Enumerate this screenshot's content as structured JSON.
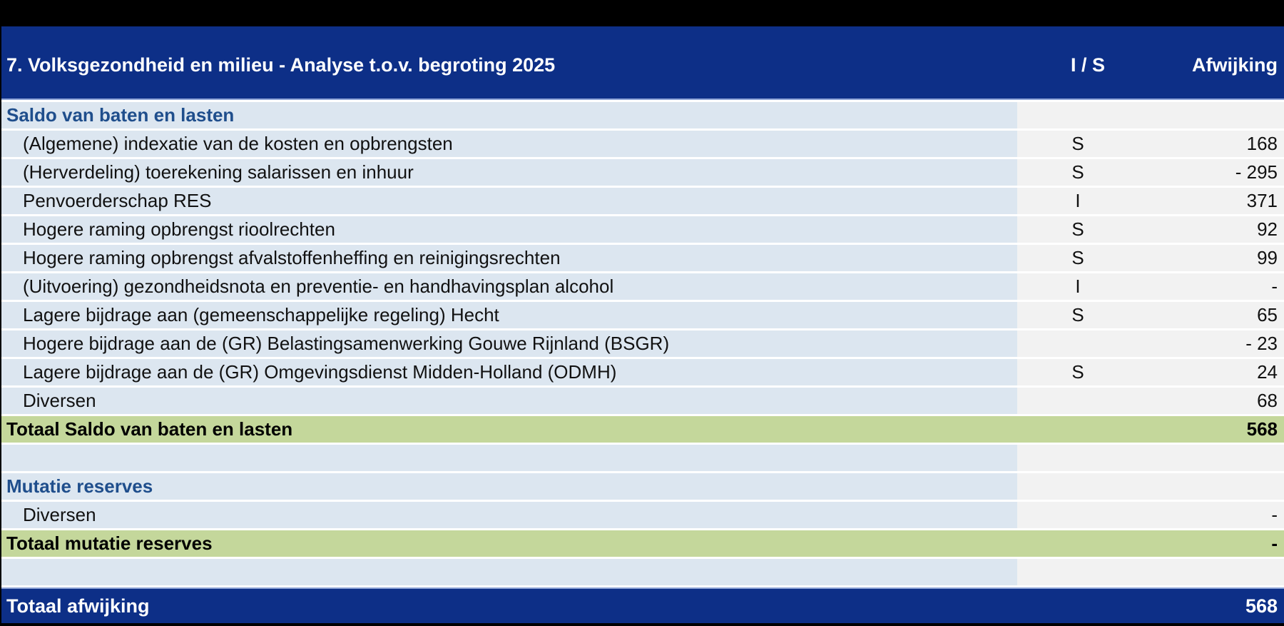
{
  "header": {
    "title": "7. Volksgezondheid en milieu - Analyse t.o.v. begroting 2025",
    "col_is": "I / S",
    "col_value": "Afwijking"
  },
  "sections": {
    "saldo": {
      "title": "Saldo van baten en lasten",
      "rows": [
        {
          "label": "(Algemene) indexatie van de kosten en opbrengsten",
          "is": "S",
          "value": "168"
        },
        {
          "label": "(Herverdeling) toerekening salarissen en inhuur",
          "is": "S",
          "value": "- 295"
        },
        {
          "label": "Penvoerderschap RES",
          "is": "I",
          "value": "371"
        },
        {
          "label": "Hogere raming opbrengst rioolrechten",
          "is": "S",
          "value": "92"
        },
        {
          "label": "Hogere raming opbrengst afvalstoffenheffing en reinigingsrechten",
          "is": "S",
          "value": "99"
        },
        {
          "label": "(Uitvoering) gezondheidsnota en preventie- en handhavingsplan alcohol",
          "is": "I",
          "value": "-"
        },
        {
          "label": "Lagere bijdrage aan (gemeenschappelijke regeling) Hecht",
          "is": "S",
          "value": "65"
        },
        {
          "label": "Hogere bijdrage aan de (GR) Belastingsamenwerking Gouwe Rijnland (BSGR)",
          "is": "",
          "value": "- 23"
        },
        {
          "label": "Lagere bijdrage aan de (GR) Omgevingsdienst Midden-Holland (ODMH)",
          "is": "S",
          "value": "24"
        },
        {
          "label": "Diversen",
          "is": "",
          "value": "68"
        }
      ],
      "total_label": "Totaal Saldo van baten en lasten",
      "total_value": "568"
    },
    "reserves": {
      "title": "Mutatie reserves",
      "rows": [
        {
          "label": "Diversen",
          "is": "",
          "value": "-"
        }
      ],
      "total_label": "Totaal mutatie reserves",
      "total_value": "-"
    }
  },
  "grand_total": {
    "label": "Totaal afwijking",
    "value": "568"
  },
  "colors": {
    "header_bg": "#0D2F87",
    "desc_bg": "#DCE6F0",
    "value_bg": "#F2F2F2",
    "total_bg": "#C4D79B",
    "section_title": "#1F4E8C"
  }
}
